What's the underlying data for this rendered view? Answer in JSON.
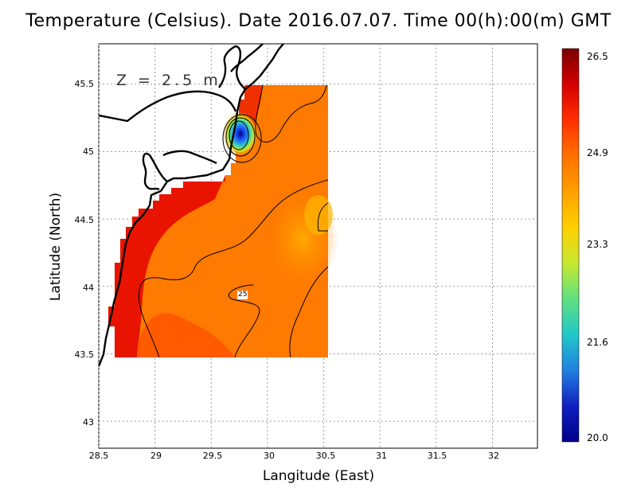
{
  "title": "Temperature (Celsius). Date 2016.07.07. Time 00(h):00(m)  GMT",
  "xlabel": "Langitude (East)",
  "ylabel": "Latitude (North)",
  "depth_label": "Z  =  2.5  m",
  "contour_label": "25",
  "x_ticks": [
    "28.5",
    "29",
    "29.5",
    "30",
    "30.5",
    "31",
    "31.5",
    "32"
  ],
  "y_ticks": [
    "45.5",
    "45",
    "44.5",
    "44",
    "43.5",
    "43"
  ],
  "colorbar": {
    "min": 20.0,
    "max": 26.5,
    "labels": [
      "26.5",
      "24.9",
      "23.3",
      "21.6",
      "20.0"
    ],
    "colors": [
      "#7a0000",
      "#d40000",
      "#ff3000",
      "#ff7000",
      "#ffa000",
      "#ffd000",
      "#c8e830",
      "#60e080",
      "#20c8c8",
      "#2080e0",
      "#1020c0",
      "#00008a"
    ]
  },
  "chart_data": {
    "type": "heatmap",
    "variable": "Temperature (Celsius)",
    "date": "2016.07.07",
    "time": "00(h):00(m) GMT",
    "depth_m": 2.5,
    "xlim": [
      28.5,
      32.4
    ],
    "ylim": [
      42.8,
      45.8
    ],
    "field_extent": {
      "lon": [
        28.62,
        30.52
      ],
      "lat": [
        43.48,
        45.5
      ]
    },
    "value_range": [
      20.0,
      26.5
    ],
    "contour_values": [
      25
    ],
    "cold_spot": {
      "lon": 29.7,
      "lat": 45.15,
      "value": 20.0
    },
    "warm_coast_value": 26.0,
    "offshore_value": 24.8,
    "grid": true
  }
}
